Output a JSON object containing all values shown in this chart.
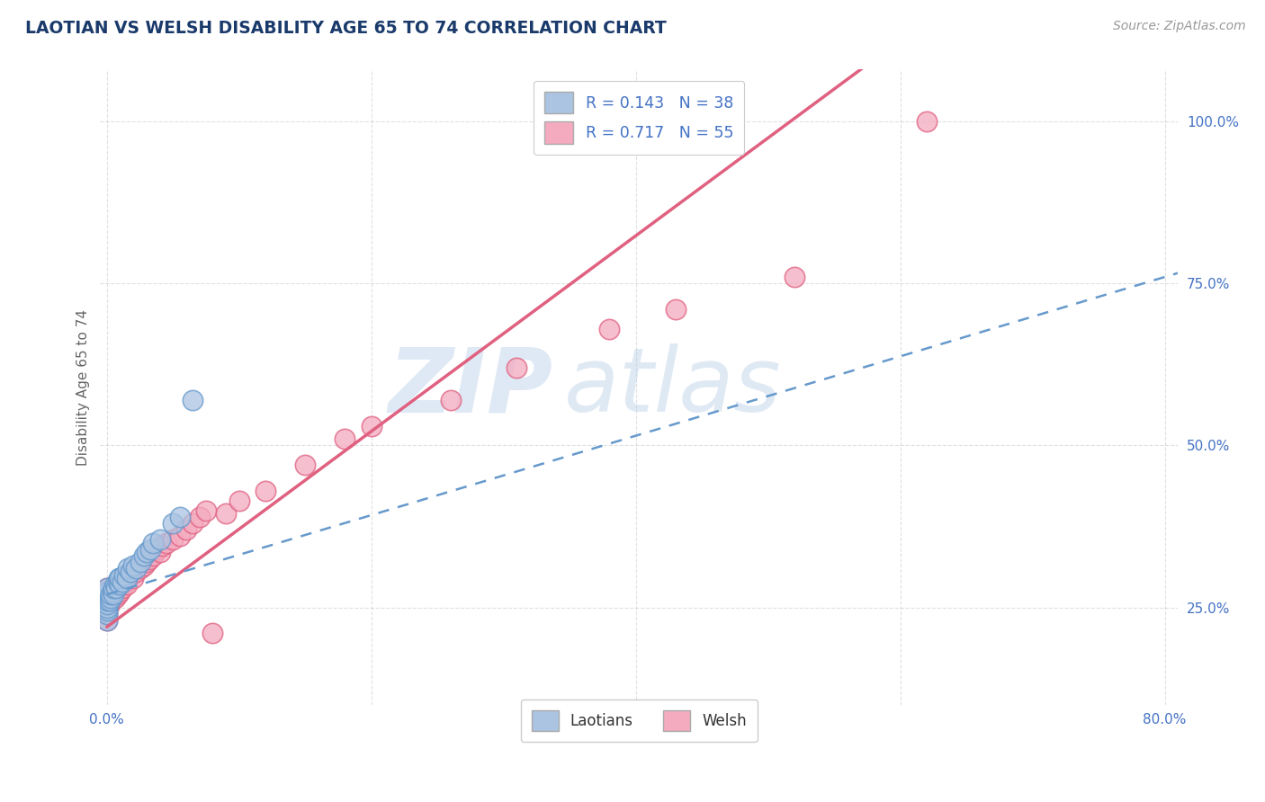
{
  "title": "LAOTIAN VS WELSH DISABILITY AGE 65 TO 74 CORRELATION CHART",
  "source_text": "Source: ZipAtlas.com",
  "ylabel": "Disability Age 65 to 74",
  "xmin": 0.0,
  "xmax": 0.8,
  "ymin": 0.1,
  "ymax": 1.08,
  "xticks": [
    0.0,
    0.2,
    0.4,
    0.6,
    0.8
  ],
  "xtick_labels": [
    "0.0%",
    "",
    "",
    "",
    "80.0%"
  ],
  "ytick_labels": [
    "25.0%",
    "50.0%",
    "75.0%",
    "100.0%"
  ],
  "yticks": [
    0.25,
    0.5,
    0.75,
    1.0
  ],
  "laotian_R": 0.143,
  "laotian_N": 38,
  "welsh_R": 0.717,
  "welsh_N": 55,
  "laotian_color": "#aac4e2",
  "welsh_color": "#f4aabf",
  "laotian_edge": "#6699cc",
  "welsh_edge": "#e06080",
  "trend_laotian_color": "#6699cc",
  "trend_welsh_color": "#e06080",
  "watermark_zip": "ZIP",
  "watermark_atlas": "atlas",
  "legend_labels": [
    "Laotians",
    "Welsh"
  ],
  "laotian_points_x": [
    0.0,
    0.0,
    0.0,
    0.0,
    0.0,
    0.0,
    0.0,
    0.0,
    0.0,
    0.0,
    0.002,
    0.003,
    0.003,
    0.004,
    0.005,
    0.005,
    0.006,
    0.007,
    0.008,
    0.009,
    0.01,
    0.01,
    0.012,
    0.013,
    0.015,
    0.016,
    0.018,
    0.02,
    0.022,
    0.025,
    0.028,
    0.03,
    0.033,
    0.035,
    0.04,
    0.05,
    0.055,
    0.065
  ],
  "laotian_points_y": [
    0.23,
    0.24,
    0.245,
    0.25,
    0.255,
    0.26,
    0.265,
    0.27,
    0.275,
    0.28,
    0.26,
    0.265,
    0.27,
    0.275,
    0.27,
    0.28,
    0.285,
    0.28,
    0.29,
    0.295,
    0.285,
    0.295,
    0.29,
    0.3,
    0.295,
    0.31,
    0.305,
    0.315,
    0.31,
    0.32,
    0.33,
    0.335,
    0.34,
    0.35,
    0.355,
    0.38,
    0.39,
    0.57
  ],
  "welsh_points_x": [
    0.0,
    0.0,
    0.0,
    0.0,
    0.0,
    0.0,
    0.0,
    0.0,
    0.0,
    0.0,
    0.002,
    0.003,
    0.004,
    0.005,
    0.006,
    0.007,
    0.008,
    0.009,
    0.01,
    0.011,
    0.012,
    0.013,
    0.015,
    0.016,
    0.018,
    0.02,
    0.022,
    0.025,
    0.028,
    0.03,
    0.032,
    0.035,
    0.038,
    0.04,
    0.042,
    0.045,
    0.05,
    0.055,
    0.06,
    0.065,
    0.07,
    0.075,
    0.08,
    0.09,
    0.1,
    0.12,
    0.15,
    0.18,
    0.2,
    0.26,
    0.31,
    0.38,
    0.43,
    0.52,
    0.62
  ],
  "welsh_points_y": [
    0.23,
    0.24,
    0.245,
    0.25,
    0.255,
    0.26,
    0.265,
    0.27,
    0.275,
    0.28,
    0.255,
    0.26,
    0.265,
    0.27,
    0.265,
    0.275,
    0.27,
    0.28,
    0.275,
    0.285,
    0.28,
    0.29,
    0.285,
    0.295,
    0.3,
    0.295,
    0.305,
    0.31,
    0.315,
    0.32,
    0.325,
    0.33,
    0.34,
    0.335,
    0.345,
    0.35,
    0.355,
    0.36,
    0.37,
    0.38,
    0.39,
    0.4,
    0.21,
    0.395,
    0.415,
    0.43,
    0.47,
    0.51,
    0.53,
    0.57,
    0.62,
    0.68,
    0.71,
    0.76,
    1.0
  ]
}
